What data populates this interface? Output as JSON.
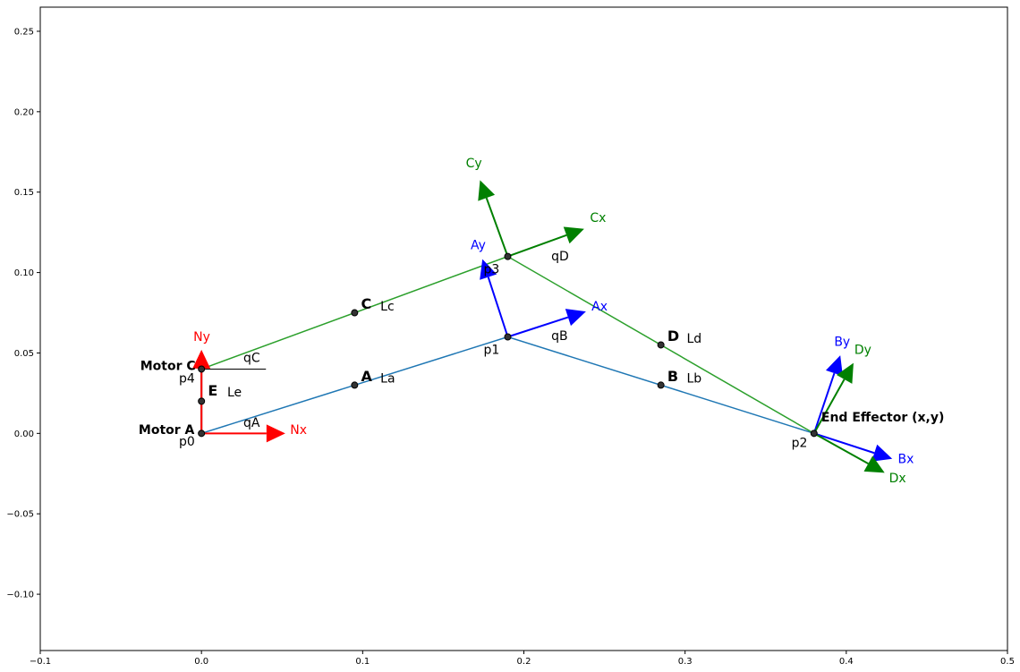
{
  "chart_data": {
    "type": "scatter",
    "xlim": [
      -0.1,
      0.5
    ],
    "ylim": [
      -0.135,
      0.265
    ],
    "grid": false,
    "x_ticks": [
      "−0.1",
      "0.0",
      "0.1",
      "0.2",
      "0.3",
      "0.4",
      "0.5"
    ],
    "x_tick_values": [
      -0.1,
      0.0,
      0.1,
      0.2,
      0.3,
      0.4,
      0.5
    ],
    "y_ticks": [
      "−0.10",
      "−0.05",
      "0.00",
      "0.05",
      "0.10",
      "0.15",
      "0.20",
      "0.25"
    ],
    "y_tick_values": [
      -0.1,
      -0.05,
      0.0,
      0.05,
      0.1,
      0.15,
      0.2,
      0.25
    ],
    "colors": {
      "blue_link": "#1f77b4",
      "green_link": "#2ca02c",
      "red": "#ff0000",
      "blue": "#0000ff",
      "green": "#008000",
      "dark": "#3b0a0a"
    },
    "links": [
      {
        "from": [
          0,
          0
        ],
        "to": [
          0.19,
          0.06
        ],
        "color": "#1f77b4"
      },
      {
        "from": [
          0.19,
          0.06
        ],
        "to": [
          0.38,
          0.0
        ],
        "color": "#1f77b4"
      },
      {
        "from": [
          0,
          0.04
        ],
        "to": [
          0.19,
          0.11
        ],
        "color": "#2ca02c"
      },
      {
        "from": [
          0.19,
          0.11
        ],
        "to": [
          0.38,
          0.0
        ],
        "color": "#2ca02c"
      },
      {
        "from": [
          0,
          0
        ],
        "to": [
          0,
          0.04
        ],
        "color": "#3b0a0a"
      }
    ],
    "reference_lines": [
      {
        "from": [
          0,
          0.04
        ],
        "to": [
          0.04,
          0.04
        ]
      }
    ],
    "points": [
      {
        "x": 0,
        "y": 0
      },
      {
        "x": 0,
        "y": 0.02
      },
      {
        "x": 0,
        "y": 0.04
      },
      {
        "x": 0.095,
        "y": 0.03
      },
      {
        "x": 0.095,
        "y": 0.075
      },
      {
        "x": 0.19,
        "y": 0.06
      },
      {
        "x": 0.19,
        "y": 0.11
      },
      {
        "x": 0.285,
        "y": 0.03
      },
      {
        "x": 0.285,
        "y": 0.055
      },
      {
        "x": 0.38,
        "y": 0.0
      }
    ],
    "vectors": [
      {
        "from": [
          0,
          0
        ],
        "to": [
          0.052,
          0.0
        ],
        "color": "#ff0000"
      },
      {
        "from": [
          0,
          0
        ],
        "to": [
          0,
          0.052
        ],
        "color": "#ff0000"
      },
      {
        "from": [
          0.19,
          0.06
        ],
        "to": [
          0.2385,
          0.0758
        ],
        "color": "#0000ff"
      },
      {
        "from": [
          0.19,
          0.06
        ],
        "to": [
          0.1743,
          0.1083
        ],
        "color": "#0000ff"
      },
      {
        "from": [
          0.19,
          0.11
        ],
        "to": [
          0.2374,
          0.1272
        ],
        "color": "#008000"
      },
      {
        "from": [
          0.19,
          0.11
        ],
        "to": [
          0.1728,
          0.1574
        ],
        "color": "#008000"
      },
      {
        "from": [
          0.38,
          0.0
        ],
        "to": [
          0.4285,
          -0.0158
        ],
        "color": "#0000ff"
      },
      {
        "from": [
          0.38,
          0.0
        ],
        "to": [
          0.3963,
          0.0485
        ],
        "color": "#0000ff"
      },
      {
        "from": [
          0.38,
          0.0
        ],
        "to": [
          0.4238,
          -0.0245
        ],
        "color": "#008000"
      },
      {
        "from": [
          0.38,
          0.0
        ],
        "to": [
          0.4045,
          0.0438
        ],
        "color": "#008000"
      }
    ],
    "annotations": [
      {
        "text": "Motor A",
        "x": -0.039,
        "y": -0.0005,
        "bold": true,
        "size": 14,
        "color": "#000000"
      },
      {
        "text": "Motor C",
        "x": -0.038,
        "y": 0.0395,
        "bold": true,
        "size": 14,
        "color": "#000000"
      },
      {
        "text": "p0",
        "x": -0.014,
        "y": -0.0075,
        "bold": false,
        "size": 14,
        "color": "#000000"
      },
      {
        "text": "p4",
        "x": -0.014,
        "y": 0.0315,
        "bold": false,
        "size": 14,
        "color": "#000000"
      },
      {
        "text": "E",
        "x": 0.004,
        "y": 0.0235,
        "bold": true,
        "size": 16,
        "color": "#000000"
      },
      {
        "text": "Le",
        "x": 0.016,
        "y": 0.023,
        "bold": false,
        "size": 14,
        "color": "#000000"
      },
      {
        "text": "qA",
        "x": 0.026,
        "y": 0.004,
        "bold": false,
        "size": 14,
        "color": "#000000"
      },
      {
        "text": "qC",
        "x": 0.026,
        "y": 0.0445,
        "bold": false,
        "size": 14,
        "color": "#000000"
      },
      {
        "text": "Nx",
        "x": 0.055,
        "y": -0.0005,
        "bold": false,
        "size": 14,
        "color": "#ff0000"
      },
      {
        "text": "Ny",
        "x": -0.005,
        "y": 0.0575,
        "bold": false,
        "size": 14,
        "color": "#ff0000"
      },
      {
        "text": "A",
        "x": 0.099,
        "y": 0.0325,
        "bold": true,
        "size": 16,
        "color": "#000000"
      },
      {
        "text": "La",
        "x": 0.111,
        "y": 0.0315,
        "bold": false,
        "size": 14,
        "color": "#000000"
      },
      {
        "text": "C",
        "x": 0.099,
        "y": 0.0775,
        "bold": true,
        "size": 16,
        "color": "#000000"
      },
      {
        "text": "Lc",
        "x": 0.111,
        "y": 0.0765,
        "bold": false,
        "size": 14,
        "color": "#000000"
      },
      {
        "text": "p1",
        "x": 0.175,
        "y": 0.0495,
        "bold": false,
        "size": 14,
        "color": "#000000"
      },
      {
        "text": "p3",
        "x": 0.175,
        "y": 0.0995,
        "bold": false,
        "size": 14,
        "color": "#000000"
      },
      {
        "text": "qB",
        "x": 0.217,
        "y": 0.058,
        "bold": false,
        "size": 14,
        "color": "#000000"
      },
      {
        "text": "qD",
        "x": 0.217,
        "y": 0.1075,
        "bold": false,
        "size": 14,
        "color": "#000000"
      },
      {
        "text": "Ax",
        "x": 0.242,
        "y": 0.0765,
        "bold": false,
        "size": 14,
        "color": "#0000ff"
      },
      {
        "text": "Ay",
        "x": 0.167,
        "y": 0.1145,
        "bold": false,
        "size": 14,
        "color": "#0000ff"
      },
      {
        "text": "Cx",
        "x": 0.241,
        "y": 0.1315,
        "bold": false,
        "size": 14,
        "color": "#008000"
      },
      {
        "text": "Cy",
        "x": 0.164,
        "y": 0.1655,
        "bold": false,
        "size": 14,
        "color": "#008000"
      },
      {
        "text": "B",
        "x": 0.289,
        "y": 0.0325,
        "bold": true,
        "size": 16,
        "color": "#000000"
      },
      {
        "text": "Lb",
        "x": 0.301,
        "y": 0.0315,
        "bold": false,
        "size": 14,
        "color": "#000000"
      },
      {
        "text": "D",
        "x": 0.289,
        "y": 0.0575,
        "bold": true,
        "size": 16,
        "color": "#000000"
      },
      {
        "text": "Ld",
        "x": 0.301,
        "y": 0.0565,
        "bold": false,
        "size": 14,
        "color": "#000000"
      },
      {
        "text": "End Effector (x,y)",
        "x": 0.3845,
        "y": 0.0075,
        "bold": true,
        "size": 14,
        "color": "#000000"
      },
      {
        "text": "p2",
        "x": 0.366,
        "y": -0.0085,
        "bold": false,
        "size": 14,
        "color": "#000000"
      },
      {
        "text": "Bx",
        "x": 0.432,
        "y": -0.0185,
        "bold": false,
        "size": 14,
        "color": "#0000ff"
      },
      {
        "text": "By",
        "x": 0.3925,
        "y": 0.0545,
        "bold": false,
        "size": 14,
        "color": "#0000ff"
      },
      {
        "text": "Dx",
        "x": 0.4265,
        "y": -0.0305,
        "bold": false,
        "size": 14,
        "color": "#008000"
      },
      {
        "text": "Dy",
        "x": 0.405,
        "y": 0.0495,
        "bold": false,
        "size": 14,
        "color": "#008000"
      }
    ]
  }
}
